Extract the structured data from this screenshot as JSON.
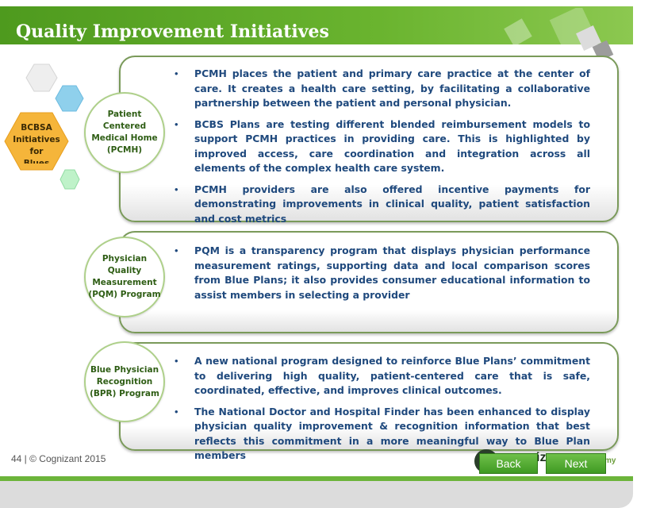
{
  "title": "Quality Improvement Initiatives",
  "hub": {
    "label": "BCBSA\nInitiatives for\nBlues"
  },
  "sections": [
    {
      "label": "Patient\nCentered\nMedical Home\n(PCMH)",
      "bullets": [
        "PCMH places the patient and primary care practice at the center of care. It creates a health care setting, by facilitating a collaborative partnership between the patient and personal physician.",
        "BCBS Plans are testing different blended reimbursement models to support PCMH practices in providing care. This is highlighted by improved access, care coordination and integration across all elements of the complex health care system.",
        "PCMH providers are also offered incentive payments for demonstrating improvements in clinical quality, patient satisfaction and cost metrics"
      ]
    },
    {
      "label": "Physician\nQuality\nMeasurement\n(PQM) Program",
      "bullets": [
        "PQM is a transparency program that displays physician performance measurement ratings, supporting data and local comparison scores from Blue Plans; it also provides consumer educational information to assist members in selecting a provider"
      ]
    },
    {
      "label": "Blue Physician\nRecognition\n(BPR) Program",
      "bullets": [
        "A new national program designed to reinforce Blue Plans’ commitment to delivering high quality, patient-centered care that is safe, coordinated, effective, and improves clinical outcomes.",
        "The National Doctor and Hospital Finder has been enhanced to display physician quality improvement & recognition information that best reflects this commitment in a more meaningful way to Blue Plan members"
      ]
    }
  ],
  "bullet_glyph": "•",
  "footer": {
    "text": "44 | © Cognizant 2015"
  },
  "logo": {
    "text": "iz",
    "sub": "my"
  },
  "nav": {
    "back": "Back",
    "next": "Next"
  },
  "colors": {
    "title_green": "#5aa527",
    "bullet_text": "#1f497d",
    "circle_text": "#2e5d14",
    "hub_fill": "#f5b53a",
    "button_green": "#4fab2e"
  }
}
